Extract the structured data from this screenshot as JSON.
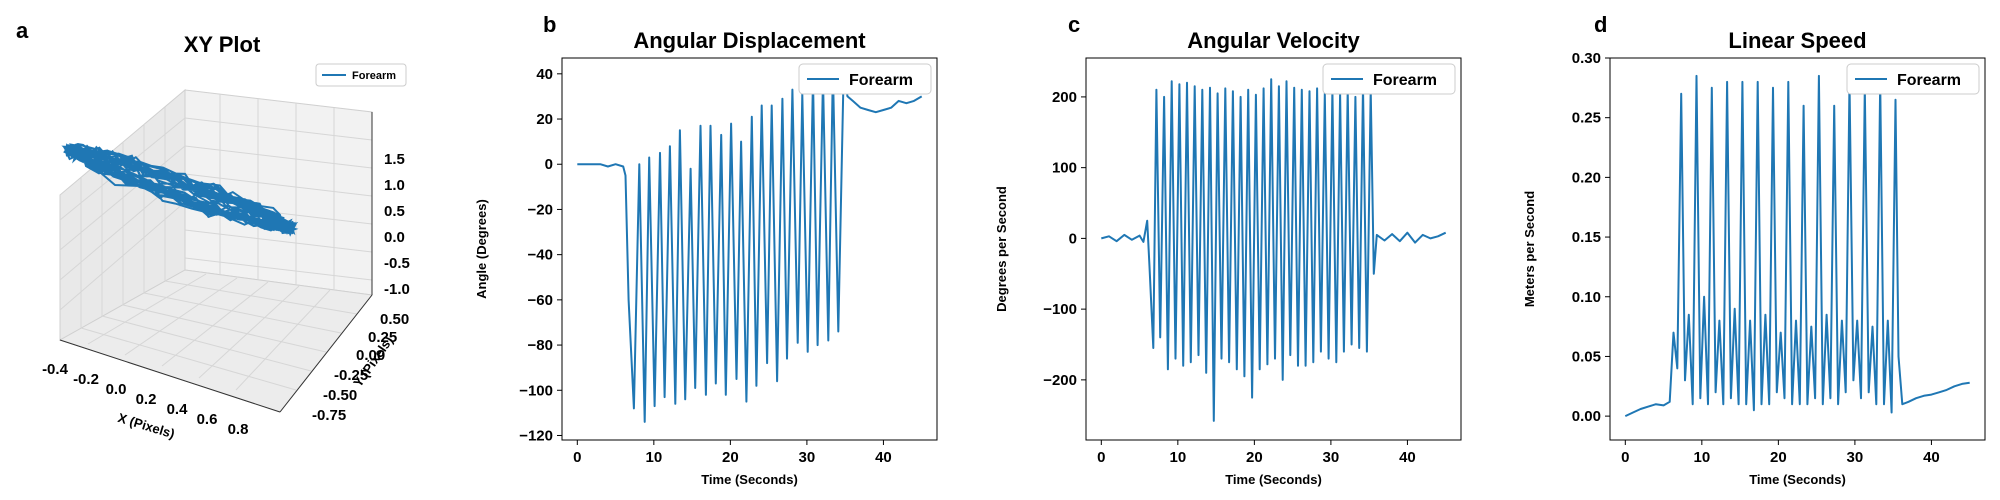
{
  "colors": {
    "series": "#1f77b4",
    "axis": "#000000",
    "pane": "#f2f2f2",
    "grid": "#d6d6d6"
  },
  "chart_data": [
    {
      "panel": "a",
      "type": "line3d",
      "title": "XY Plot",
      "xlabel": "X (Pixels)",
      "ylabel": "Y (Pixels)",
      "zlabel": "",
      "xlim": [
        -0.4,
        0.9
      ],
      "ylim": [
        -0.85,
        0.55
      ],
      "zlim": [
        -1.3,
        1.6
      ],
      "xticks": [
        "-0.4",
        "-0.2",
        "0.0",
        "0.2",
        "0.4",
        "0.6",
        "0.8"
      ],
      "yticks": [
        "-0.75",
        "-0.50",
        "-0.25",
        "0.00",
        "0.25",
        "0.50"
      ],
      "zticks": [
        "-1.0",
        "-0.5",
        "0.0",
        "0.5",
        "1.0",
        "1.5"
      ],
      "legend": {
        "label": "Forearm",
        "location": "upper-right"
      },
      "series": [
        {
          "name": "Forearm",
          "description_cycles": 18
        }
      ]
    },
    {
      "panel": "b",
      "type": "line",
      "title": "Angular Displacement",
      "xlabel": "Time (Seconds)",
      "ylabel": "Angle (Degrees)",
      "xlim": [
        -2,
        47
      ],
      "ylim": [
        -122,
        47
      ],
      "xticks": [
        0,
        10,
        20,
        30,
        40
      ],
      "yticks": [
        -120,
        -100,
        -80,
        -60,
        -40,
        -20,
        0,
        20,
        40
      ],
      "legend": {
        "label": "Forearm",
        "location": "upper-right"
      },
      "series": [
        {
          "name": "Forearm",
          "x": [
            0,
            1,
            2,
            3,
            4,
            5,
            6,
            6.3,
            6.7,
            7.4,
            8.1,
            8.8,
            9.4,
            10.1,
            10.8,
            11.4,
            12.1,
            12.8,
            13.4,
            14.1,
            14.8,
            15.4,
            16.1,
            16.8,
            17.4,
            18.1,
            18.8,
            19.4,
            20.1,
            20.8,
            21.4,
            22.1,
            22.8,
            23.4,
            24.1,
            24.8,
            25.4,
            26.1,
            26.8,
            27.4,
            28.1,
            28.8,
            29.4,
            30.1,
            30.8,
            31.4,
            32.1,
            32.8,
            33.4,
            34.1,
            34.8,
            35.3,
            36,
            37,
            38,
            39,
            40,
            41,
            42,
            43,
            44,
            45
          ],
          "y": [
            0,
            0,
            0,
            0,
            -1,
            0,
            -1,
            -5,
            -60,
            -108,
            0,
            -114,
            3,
            -107,
            5,
            -103,
            8,
            -106,
            15,
            -104,
            -2,
            -99,
            17,
            -102,
            17,
            -97,
            13,
            -102,
            18,
            -95,
            10,
            -105,
            21,
            -98,
            26,
            -88,
            26,
            -96,
            29,
            -86,
            33,
            -79,
            31,
            -83,
            38,
            -80,
            38,
            -78,
            42,
            -74,
            40,
            30,
            28,
            25,
            24,
            23,
            24,
            25,
            28,
            27,
            28,
            30
          ]
        }
      ]
    },
    {
      "panel": "c",
      "type": "line",
      "title": "Angular Velocity",
      "xlabel": "Time (Seconds)",
      "ylabel": "Degrees per Second",
      "xlim": [
        -2,
        47
      ],
      "ylim": [
        -285,
        255
      ],
      "xticks": [
        0,
        10,
        20,
        30,
        40
      ],
      "yticks": [
        -200,
        -100,
        0,
        100,
        200
      ],
      "legend": {
        "label": "Forearm",
        "location": "upper-right"
      },
      "series": [
        {
          "name": "Forearm",
          "x": [
            0,
            1,
            2,
            3,
            4,
            5,
            5.5,
            6,
            6.3,
            6.8,
            7.2,
            7.7,
            8.2,
            8.7,
            9.2,
            9.7,
            10.2,
            10.7,
            11.2,
            11.7,
            12.2,
            12.7,
            13.2,
            13.7,
            14.2,
            14.7,
            15.2,
            15.7,
            16.2,
            16.7,
            17.2,
            17.7,
            18.2,
            18.7,
            19.2,
            19.7,
            20.2,
            20.7,
            21.2,
            21.7,
            22.2,
            22.7,
            23.2,
            23.7,
            24.2,
            24.7,
            25.2,
            25.7,
            26.2,
            26.7,
            27.2,
            27.7,
            28.2,
            28.7,
            29.2,
            29.7,
            30.2,
            30.7,
            31.2,
            31.7,
            32.2,
            32.7,
            33.2,
            33.7,
            34.2,
            34.7,
            35.2,
            35.6,
            36,
            37,
            38,
            39,
            40,
            41,
            42,
            43,
            44,
            45
          ],
          "y": [
            0,
            3,
            -4,
            5,
            -2,
            4,
            -5,
            25,
            -40,
            -155,
            210,
            -140,
            200,
            -185,
            222,
            -170,
            218,
            -180,
            220,
            -175,
            215,
            -165,
            210,
            -190,
            213,
            -258,
            205,
            -170,
            212,
            -175,
            208,
            -185,
            200,
            -195,
            210,
            -225,
            203,
            -185,
            212,
            -178,
            225,
            -170,
            215,
            -200,
            222,
            -165,
            213,
            -180,
            210,
            -180,
            208,
            -175,
            212,
            -160,
            205,
            -170,
            210,
            -175,
            205,
            -160,
            210,
            -150,
            200,
            -155,
            215,
            -160,
            210,
            -50,
            5,
            -3,
            6,
            -4,
            8,
            -6,
            5,
            0,
            3,
            8
          ]
        }
      ]
    },
    {
      "panel": "d",
      "type": "line",
      "title": "Linear Speed",
      "xlabel": "Time (Seconds)",
      "ylabel": "Meters per Second",
      "xlim": [
        -2,
        47
      ],
      "ylim": [
        -0.02,
        0.3
      ],
      "xticks": [
        0,
        10,
        20,
        30,
        40
      ],
      "yticks": [
        0.0,
        0.05,
        0.1,
        0.15,
        0.2,
        0.25,
        0.3
      ],
      "legend": {
        "label": "Forearm",
        "location": "upper-right"
      },
      "series": [
        {
          "name": "Forearm",
          "x": [
            0,
            1,
            2,
            3,
            4,
            5,
            5.8,
            6.3,
            6.8,
            7.3,
            7.8,
            8.3,
            8.8,
            9.3,
            9.8,
            10.3,
            10.8,
            11.3,
            11.8,
            12.3,
            12.8,
            13.3,
            13.8,
            14.3,
            14.8,
            15.3,
            15.8,
            16.3,
            16.8,
            17.3,
            17.8,
            18.3,
            18.8,
            19.3,
            19.8,
            20.3,
            20.8,
            21.3,
            21.8,
            22.3,
            22.8,
            23.3,
            23.8,
            24.3,
            24.8,
            25.3,
            25.8,
            26.3,
            26.8,
            27.3,
            27.8,
            28.3,
            28.8,
            29.3,
            29.8,
            30.3,
            30.8,
            31.3,
            31.8,
            32.3,
            32.8,
            33.3,
            33.8,
            34.3,
            34.8,
            35.3,
            35.7,
            36.2,
            37,
            38,
            39,
            40,
            41,
            42,
            43,
            44,
            45
          ],
          "y": [
            0,
            0.003,
            0.006,
            0.008,
            0.01,
            0.009,
            0.012,
            0.07,
            0.04,
            0.27,
            0.03,
            0.085,
            0.01,
            0.285,
            0.015,
            0.1,
            0.01,
            0.275,
            0.02,
            0.08,
            0.01,
            0.28,
            0.015,
            0.09,
            0.01,
            0.28,
            0.01,
            0.08,
            0.005,
            0.28,
            0.01,
            0.085,
            0.01,
            0.275,
            0.02,
            0.07,
            0.015,
            0.28,
            0.01,
            0.08,
            0.01,
            0.26,
            0.01,
            0.075,
            0.015,
            0.285,
            0.01,
            0.085,
            0.015,
            0.26,
            0.01,
            0.08,
            0.02,
            0.28,
            0.03,
            0.08,
            0.015,
            0.275,
            0.02,
            0.075,
            0.01,
            0.28,
            0.01,
            0.08,
            0.003,
            0.265,
            0.05,
            0.01,
            0.012,
            0.015,
            0.017,
            0.018,
            0.02,
            0.022,
            0.025,
            0.027,
            0.028
          ]
        }
      ]
    }
  ]
}
